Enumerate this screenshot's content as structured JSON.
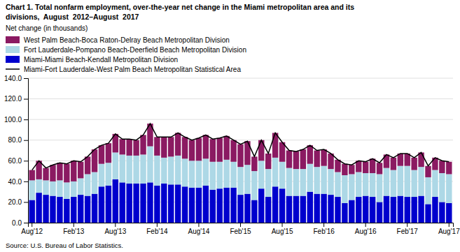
{
  "chart_data": {
    "type": "bar",
    "title": [
      "Chart 1. Total nonfarm employment, over-the-year net change in the Miami metropolitan area and its",
      "divisions,  August  2012–August  2017"
    ],
    "y_label": "Net change (in thousands)",
    "annotations": [
      "Source: U.S. Bureau of Labor Statistics."
    ],
    "stacked": true,
    "grid": true,
    "legend": "upper left",
    "ylim": [
      0,
      140
    ],
    "yticks": [
      {
        "value": 0,
        "label": "0.0"
      },
      {
        "value": 20,
        "label": "20.0"
      },
      {
        "value": 40,
        "label": "40.0"
      },
      {
        "value": 60,
        "label": "60.0"
      },
      {
        "value": 80,
        "label": "80.0"
      },
      {
        "value": 100,
        "label": "100.0"
      },
      {
        "value": 120,
        "label": "120.0"
      },
      {
        "value": 140,
        "label": "140.0"
      }
    ],
    "categories": [
      "Aug'12",
      null,
      null,
      null,
      null,
      null,
      "Feb'13",
      null,
      null,
      null,
      null,
      null,
      "Aug'13",
      null,
      null,
      null,
      null,
      null,
      "Feb'14",
      null,
      null,
      null,
      null,
      null,
      "Aug'14",
      null,
      null,
      null,
      null,
      null,
      "Feb'15",
      null,
      null,
      null,
      null,
      null,
      "Aug'15",
      null,
      null,
      null,
      null,
      null,
      "Feb'16",
      null,
      null,
      null,
      null,
      null,
      "Aug'16",
      null,
      null,
      null,
      null,
      null,
      "Feb'17",
      null,
      null,
      null,
      null,
      null,
      "Aug'17"
    ],
    "series": [
      {
        "name": "Miami-Miami Beach-Kendall Metropolitan Division",
        "type": "bar",
        "color": "#0000CD",
        "values": [
          22,
          29,
          27,
          26,
          25,
          23,
          25,
          27,
          26,
          28,
          35,
          36,
          42,
          39,
          38,
          38,
          38,
          39,
          36,
          38,
          37,
          37,
          35,
          34,
          34,
          36,
          32,
          33,
          34,
          34,
          27,
          28,
          22,
          33,
          25,
          35,
          33,
          26,
          26,
          26,
          30,
          28,
          28,
          27,
          25,
          19,
          22,
          25,
          26,
          25,
          20,
          26,
          25,
          26,
          25,
          25,
          26,
          18,
          25,
          20,
          19
        ]
      },
      {
        "name": "Fort Lauderdale-Pompano Beach-Deerfield Beach Metropolitan Division",
        "type": "bar",
        "color": "#ADD8E6",
        "values": [
          19,
          13,
          14,
          14,
          16,
          16,
          15,
          16,
          21,
          21,
          22,
          22,
          26,
          27,
          27,
          27,
          28,
          35,
          29,
          25,
          27,
          28,
          27,
          26,
          26,
          26,
          27,
          26,
          27,
          25,
          27,
          28,
          28,
          27,
          27,
          28,
          26,
          27,
          26,
          26,
          27,
          26,
          27,
          25,
          24,
          27,
          25,
          24,
          22,
          23,
          27,
          27,
          26,
          29,
          30,
          26,
          28,
          26,
          26,
          28,
          28
        ]
      },
      {
        "name": "West Palm Beach-Boca Raton-Delray Beach Metropolitan Division",
        "type": "bar",
        "color": "#8B1A62",
        "values": [
          10,
          18,
          12,
          16,
          17,
          18,
          20,
          16,
          17,
          22,
          18,
          19,
          18,
          15,
          16,
          15,
          19,
          22,
          18,
          20,
          19,
          22,
          21,
          20,
          22,
          23,
          22,
          23,
          23,
          21,
          22,
          23,
          14,
          20,
          15,
          24,
          19,
          17,
          17,
          19,
          18,
          16,
          16,
          15,
          12,
          11,
          9,
          11,
          11,
          14,
          11,
          13,
          12,
          12,
          12,
          12,
          14,
          11,
          12,
          12,
          12
        ]
      },
      {
        "name": "Miami-Fort Lauderdale-West Palm Beach Metropolitan Statistical Area",
        "type": "line",
        "color": "#000000",
        "values": [
          51,
          60,
          53,
          56,
          58,
          57,
          60,
          59,
          64,
          71,
          75,
          77,
          86,
          81,
          81,
          80,
          85,
          96,
          83,
          83,
          83,
          87,
          83,
          80,
          82,
          85,
          81,
          82,
          84,
          80,
          76,
          79,
          64,
          80,
          67,
          87,
          78,
          70,
          69,
          71,
          75,
          70,
          71,
          67,
          61,
          57,
          56,
          60,
          59,
          62,
          58,
          66,
          63,
          67,
          67,
          63,
          68,
          55,
          63,
          60,
          59
        ]
      }
    ]
  }
}
